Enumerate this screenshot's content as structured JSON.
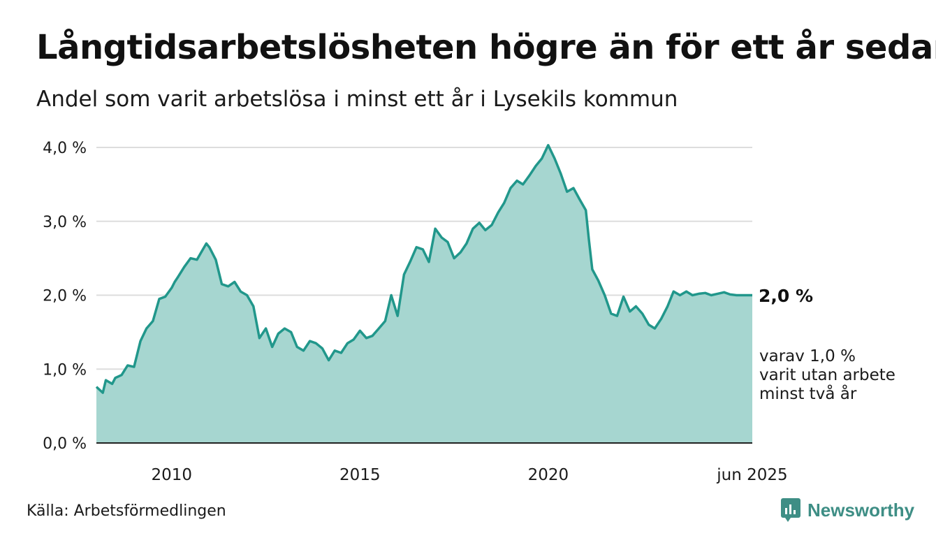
{
  "title": "Långtidsarbetslösheten högre än för ett år sedan",
  "subtitle": "Andel som varit arbetslösa i minst ett år i Lysekils kommun",
  "source": "Källa: Arbetsförmedlingen",
  "brand": {
    "name": "Newsworthy",
    "icon": "newsworthy-logo-icon",
    "color": "#3e8e85"
  },
  "end_label": "2,0 %",
  "note_lines": [
    "varav 1,0 %",
    "varit utan arbete",
    "minst två år"
  ],
  "chart_data": {
    "type": "area",
    "ylim": [
      0,
      4.2
    ],
    "yticks": [
      0,
      1,
      2,
      3,
      4
    ],
    "ytick_labels": [
      "0,0 %",
      "1,0 %",
      "2,0 %",
      "3,0 %",
      "4,0 %"
    ],
    "xlim": [
      2008.0,
      2025.42
    ],
    "xticks": [
      2010,
      2015,
      2020,
      2025.42
    ],
    "xtick_labels": [
      "2010",
      "2015",
      "2020",
      "jun 2025"
    ],
    "grid": true,
    "colors": {
      "series1_line": "#21978b",
      "series1_fill": "#a6d6d0",
      "series2_line": "#2f4d45",
      "series2_fill": "#6f9f96",
      "grid": "#dddddd",
      "axis": "#222222"
    },
    "series": [
      {
        "values_x": [
          2008.0,
          2008.17,
          2008.25,
          2008.42,
          2008.5,
          2008.67,
          2008.83,
          2009.0,
          2009.17,
          2009.33,
          2009.5,
          2009.67,
          2009.83,
          2010.0,
          2010.08,
          2010.17,
          2010.33,
          2010.5,
          2010.67,
          2010.83,
          2010.92,
          2011.0,
          2011.17,
          2011.33,
          2011.5,
          2011.67,
          2011.83,
          2012.0,
          2012.17,
          2012.33,
          2012.5,
          2012.67,
          2012.83,
          2013.0,
          2013.17,
          2013.33,
          2013.5,
          2013.67,
          2013.83,
          2014.0,
          2014.17,
          2014.33,
          2014.5,
          2014.67,
          2014.83,
          2015.0,
          2015.17,
          2015.33,
          2015.5,
          2015.67,
          2015.83,
          2016.0,
          2016.17,
          2016.33,
          2016.5,
          2016.67,
          2016.83,
          2017.0,
          2017.17,
          2017.33,
          2017.5,
          2017.67,
          2017.83,
          2018.0,
          2018.17,
          2018.33,
          2018.5,
          2018.67,
          2018.83,
          2019.0,
          2019.17,
          2019.33,
          2019.5,
          2019.67,
          2019.83,
          2020.0,
          2020.17,
          2020.33,
          2020.5,
          2020.67,
          2020.83,
          2021.0,
          2021.08,
          2021.17,
          2021.33,
          2021.5,
          2021.67,
          2021.83,
          2022.0,
          2022.17,
          2022.33,
          2022.5,
          2022.67,
          2022.83,
          2023.0,
          2023.17,
          2023.33,
          2023.5,
          2023.67,
          2023.83,
          2024.0,
          2024.17,
          2024.33,
          2024.5,
          2024.67,
          2024.83,
          2025.0,
          2025.17,
          2025.42
        ],
        "values": [
          0.76,
          0.68,
          0.85,
          0.8,
          0.88,
          0.92,
          1.05,
          1.03,
          1.38,
          1.55,
          1.65,
          1.95,
          1.98,
          2.1,
          2.18,
          2.25,
          2.38,
          2.5,
          2.48,
          2.62,
          2.7,
          2.65,
          2.48,
          2.15,
          2.12,
          2.18,
          2.05,
          2.0,
          1.85,
          1.42,
          1.55,
          1.3,
          1.48,
          1.55,
          1.5,
          1.3,
          1.25,
          1.38,
          1.35,
          1.28,
          1.12,
          1.25,
          1.22,
          1.35,
          1.4,
          1.52,
          1.42,
          1.45,
          1.55,
          1.65,
          2.0,
          1.72,
          2.28,
          2.45,
          2.65,
          2.62,
          2.45,
          2.9,
          2.78,
          2.72,
          2.5,
          2.58,
          2.7,
          2.9,
          2.98,
          2.88,
          2.95,
          3.12,
          3.25,
          3.45,
          3.55,
          3.5,
          3.62,
          3.75,
          3.85,
          4.03,
          3.85,
          3.65,
          3.4,
          3.45,
          3.3,
          3.15,
          2.75,
          2.35,
          2.2,
          2.0,
          1.75,
          1.72,
          1.98,
          1.78,
          1.85,
          1.75,
          1.6,
          1.55,
          1.68,
          1.85,
          2.05,
          2.0,
          2.05,
          2.0,
          2.02,
          2.03,
          2.0,
          2.02,
          2.04,
          2.01,
          2.0,
          2.0,
          2.0
        ],
        "name": ""
      }
    ]
  }
}
